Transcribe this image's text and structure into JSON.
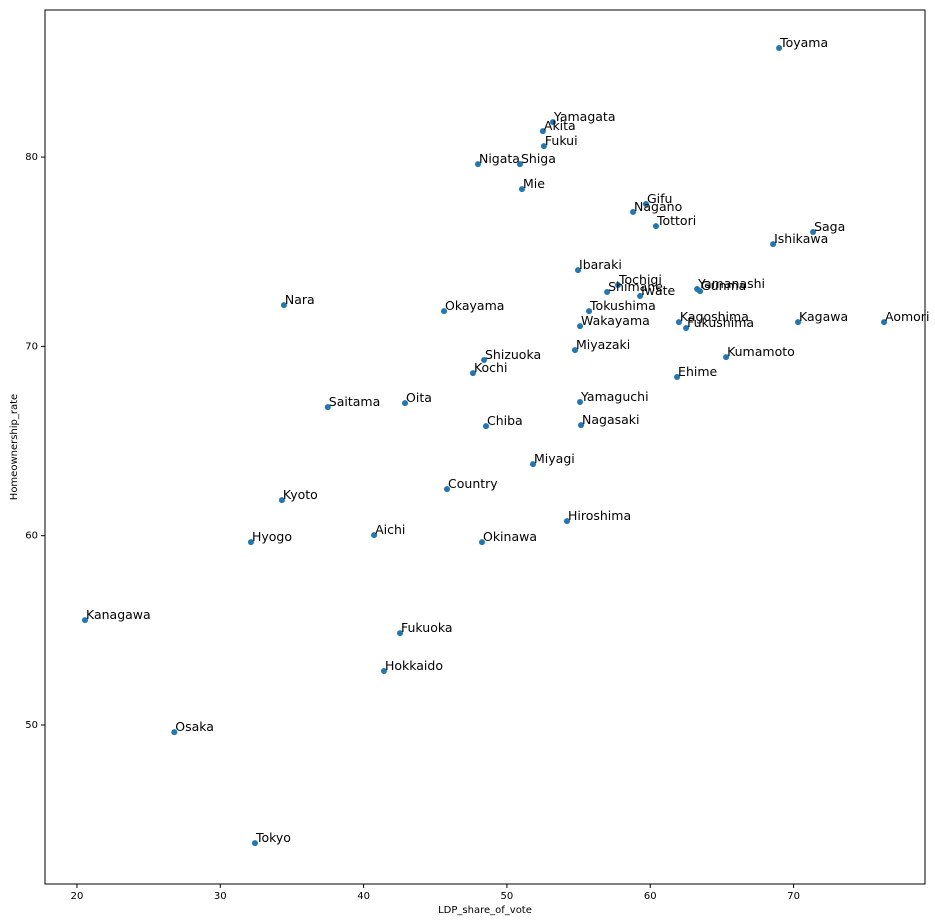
{
  "chart_data": {
    "type": "scatter",
    "xlabel": "LDP_share_of_vote",
    "ylabel": "Homeownership_rate",
    "color": "#1f77b4",
    "labels": [
      "Toyama",
      "Yamagata",
      "Akita",
      "Fukui",
      "Nigata",
      "Shiga",
      "Mie",
      "Gifu",
      "Nagano",
      "Tottori",
      "Saga",
      "Ishikawa",
      "Ibaraki",
      "Tochigi",
      "Shimane",
      "Iwate",
      "Yamanashi",
      "Gunma",
      "Nara",
      "Okayama",
      "Tokushima",
      "Wakayama",
      "Kagoshima",
      "Fukushima",
      "Kagawa",
      "Aomori",
      "Miyazaki",
      "Kumamoto",
      "Shizuoka",
      "Kochi",
      "Ehime",
      "Yamaguchi",
      "Saitama",
      "Oita",
      "Nagasaki",
      "Chiba",
      "Miyagi",
      "Country",
      "Kyoto",
      "Hiroshima",
      "Aichi",
      "Hyogo",
      "Okinawa",
      "Kanagawa",
      "Fukuoka",
      "Hokkaido",
      "Osaka",
      "Tokyo"
    ],
    "x": [
      68.99,
      53.21,
      52.51,
      52.58,
      47.98,
      50.91,
      51.05,
      59.7,
      58.8,
      60.4,
      71.36,
      68.57,
      54.96,
      57.75,
      56.99,
      59.29,
      63.27,
      63.47,
      34.44,
      45.61,
      55.73,
      55.1,
      62.0,
      62.5,
      70.31,
      76.31,
      54.75,
      65.29,
      48.4,
      47.63,
      61.87,
      55.1,
      37.5,
      42.89,
      55.17,
      48.54,
      51.82,
      45.82,
      34.3,
      54.19,
      40.73,
      32.14,
      48.26,
      20.56,
      42.54,
      41.42,
      26.79,
      32.42
    ],
    "values": [
      85.76,
      81.85,
      81.37,
      80.58,
      79.63,
      79.63,
      78.31,
      77.52,
      77.1,
      76.35,
      76.04,
      75.4,
      74.03,
      73.24,
      72.87,
      72.66,
      73.03,
      72.92,
      72.18,
      71.86,
      71.86,
      71.07,
      71.28,
      70.97,
      71.28,
      71.28,
      69.8,
      69.43,
      69.28,
      68.59,
      68.38,
      67.06,
      66.79,
      67.0,
      65.84,
      65.79,
      63.78,
      62.46,
      61.88,
      60.77,
      60.03,
      59.66,
      59.66,
      55.54,
      54.85,
      52.85,
      49.62,
      43.76
    ],
    "xlim": [
      17.77,
      79.17
    ],
    "xticks": [
      20,
      30,
      40,
      50,
      60,
      70
    ],
    "ylim": [
      41.6,
      87.77
    ],
    "yticks": [
      50,
      60,
      70,
      80
    ]
  }
}
